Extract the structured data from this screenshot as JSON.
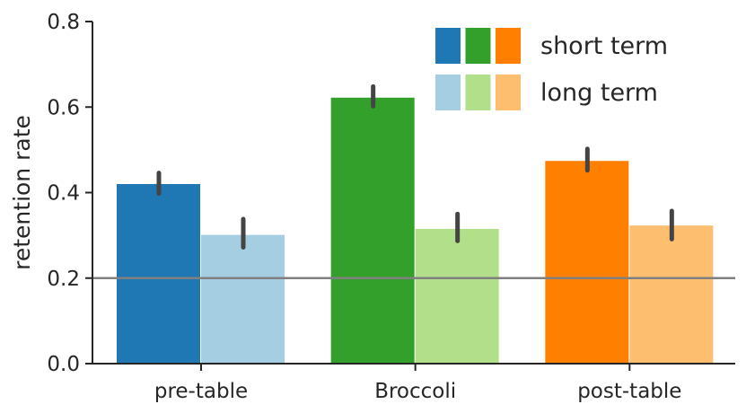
{
  "chart_data": {
    "type": "bar",
    "categories": [
      "pre-table",
      "Broccoli",
      "post-table"
    ],
    "series": [
      {
        "name": "short term",
        "values": [
          0.42,
          0.622,
          0.474
        ],
        "errors": [
          [
            0.398,
            0.446
          ],
          [
            0.602,
            0.648
          ],
          [
            0.452,
            0.502
          ]
        ]
      },
      {
        "name": "long term",
        "values": [
          0.301,
          0.315,
          0.323
        ],
        "errors": [
          [
            0.272,
            0.338
          ],
          [
            0.287,
            0.35
          ],
          [
            0.291,
            0.357
          ]
        ]
      }
    ],
    "colors": {
      "short term": [
        "#1f77b4",
        "#33a02c",
        "#ff7f00"
      ],
      "long term": [
        "#a6cee3",
        "#b2df8a",
        "#fdbf6f"
      ]
    },
    "reference_line": {
      "y": 0.2,
      "color": "#808080"
    },
    "ylabel": "retention rate",
    "xlabel": "",
    "ylim": [
      0,
      0.8
    ],
    "yticks": [
      "0.0",
      "0.2",
      "0.4",
      "0.6",
      "0.8"
    ],
    "legend_position": "top-right",
    "grid": false
  }
}
